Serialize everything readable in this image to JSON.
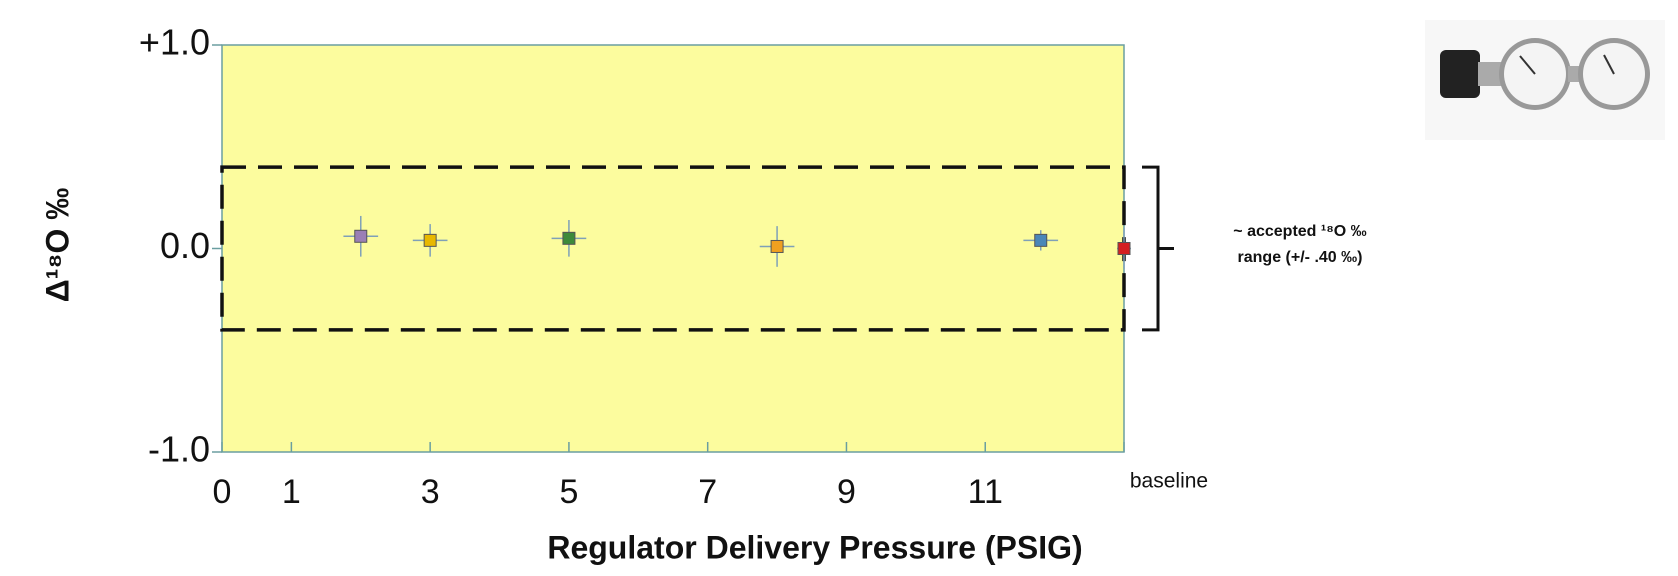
{
  "chart_data": {
    "type": "scatter",
    "title": null,
    "x_label": "Regulator Delivery Pressure (PSIG)",
    "y_label": "Δ¹⁸O ‰",
    "x": [
      2,
      3,
      5,
      8,
      11.8,
      13
    ],
    "values": [
      0.06,
      0.04,
      0.05,
      0.01,
      0.04,
      0.0
    ],
    "yerr": [
      0.1,
      0.08,
      0.09,
      0.1,
      0.05,
      0.1
    ],
    "xerr": [
      0.25,
      0.25,
      0.25,
      0.25,
      0.25,
      0.1
    ],
    "colors": [
      "#9b7fb5",
      "#e8b800",
      "#3d8a3a",
      "#f0a020",
      "#4a86b8",
      "#d42020"
    ],
    "xlim": [
      0,
      13
    ],
    "ylim": [
      -1,
      1
    ],
    "xticks": [
      0,
      1,
      3,
      5,
      7,
      9,
      11,
      {
        "value": 13,
        "label": "baseline"
      }
    ],
    "yticks": [
      {
        "value": -1,
        "label": "-1.0"
      },
      {
        "value": 0,
        "label": "0.0"
      },
      {
        "value": 1,
        "label": "+1.0"
      }
    ],
    "accepted_range": [
      -0.4,
      0.4
    ],
    "annotation": [
      "~ accepted ¹⁸O ‰",
      "range (+/- .40 ‰)"
    ],
    "plot_color": "#fcfc9e"
  }
}
